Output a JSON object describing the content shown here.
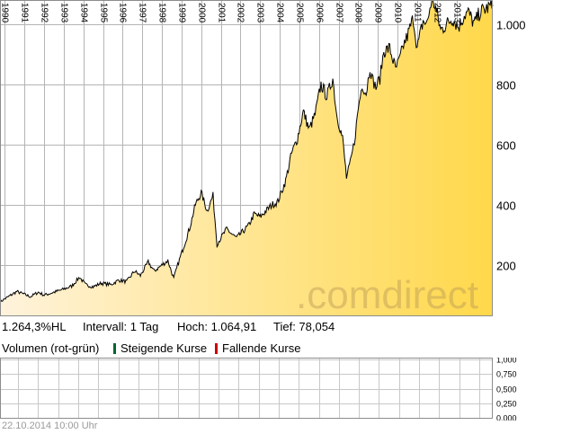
{
  "chart_data": [
    {
      "type": "area",
      "x_tick_labels": [
        "1990",
        "1991",
        "1992",
        "1993",
        "1994",
        "1995",
        "1996",
        "1997",
        "1998",
        "1999",
        "2000",
        "2001",
        "2002",
        "2003",
        "2004",
        "2005",
        "2006",
        "2007",
        "2008",
        "2009",
        "2010",
        "2011",
        "2012",
        "2013"
      ],
      "y_ticks": [
        200,
        400,
        600,
        800,
        1000
      ],
      "y_tick_labels": [
        "200",
        "400",
        "600",
        "800",
        "1.000"
      ],
      "ylim": [
        30,
        1080
      ],
      "xlim": [
        1989.75,
        2014.85
      ],
      "grid": true,
      "fill_gradient": [
        "#fff3dc",
        "#ffd84a"
      ],
      "line_color": "#000000",
      "watermark": ".comdirect",
      "x": [
        1989.75,
        1990.3,
        1990.6,
        1990.9,
        1991.3,
        1991.7,
        1992.0,
        1992.5,
        1992.9,
        1993.4,
        1993.8,
        1994.1,
        1994.5,
        1994.9,
        1995.4,
        1995.8,
        1996.2,
        1996.6,
        1996.9,
        1997.3,
        1997.6,
        1997.9,
        1998.3,
        1998.6,
        1998.8,
        1999.1,
        1999.4,
        1999.7,
        2000.0,
        2000.3,
        2000.6,
        2000.8,
        2001.0,
        2001.3,
        2001.6,
        2001.8,
        2002.1,
        2002.4,
        2002.7,
        2003.0,
        2003.3,
        2003.6,
        2003.9,
        2004.3,
        2004.6,
        2004.9,
        2005.2,
        2005.5,
        2005.8,
        2006.1,
        2006.4,
        2006.7,
        2006.9,
        2007.2,
        2007.4,
        2007.6,
        2007.8,
        2008.0,
        2008.2,
        2008.4,
        2008.6,
        2008.7,
        2008.9,
        2009.1,
        2009.3,
        2009.6,
        2009.9,
        2010.1,
        2010.3,
        2010.5,
        2010.8,
        2011.0,
        2011.3,
        2011.5,
        2011.7,
        2011.9,
        2012.2,
        2012.5,
        2012.8,
        2013.1,
        2013.4,
        2013.6,
        2013.9,
        2014.2,
        2014.5,
        2014.85
      ],
      "y": [
        78,
        100,
        112,
        105,
        95,
        110,
        100,
        110,
        118,
        130,
        160,
        135,
        128,
        140,
        135,
        150,
        145,
        180,
        165,
        210,
        180,
        195,
        215,
        155,
        200,
        260,
        320,
        400,
        440,
        380,
        430,
        270,
        290,
        320,
        300,
        290,
        310,
        330,
        370,
        360,
        380,
        400,
        410,
        480,
        570,
        620,
        710,
        650,
        700,
        800,
        760,
        820,
        700,
        620,
        490,
        540,
        610,
        720,
        800,
        770,
        860,
        820,
        790,
        820,
        910,
        920,
        850,
        880,
        930,
        960,
        1020,
        920,
        1010,
        1000,
        1070,
        1064.91,
        980,
        1000,
        1020,
        990,
        1030,
        1040,
        1000,
        1040,
        1050,
        1064
      ]
    },
    {
      "type": "bar",
      "title": "Volumen (rot-grün)",
      "y_ticks": [
        0,
        0.25,
        0.5,
        0.75,
        1
      ],
      "y_tick_labels": [
        "0,000",
        "0,250",
        "0,500",
        "0,750",
        "1,000"
      ],
      "ylim": [
        0,
        1
      ],
      "grid": true,
      "series": [
        {
          "name": "Steigende Kurse",
          "color": "#006633",
          "values": []
        },
        {
          "name": "Fallende Kurse",
          "color": "#cc0000",
          "values": []
        }
      ]
    }
  ],
  "info": {
    "change": "1.264,3%HL",
    "interval": "Intervall: 1 Tag",
    "high": "Hoch:  1.064,91",
    "low": "Tief:  78,054"
  },
  "volume": {
    "label": "Volumen (rot-grün)",
    "rising": "Steigende Kurse",
    "falling": "Fallende Kurse"
  },
  "timestamp": "22.10.2014 10:00 Uhr"
}
